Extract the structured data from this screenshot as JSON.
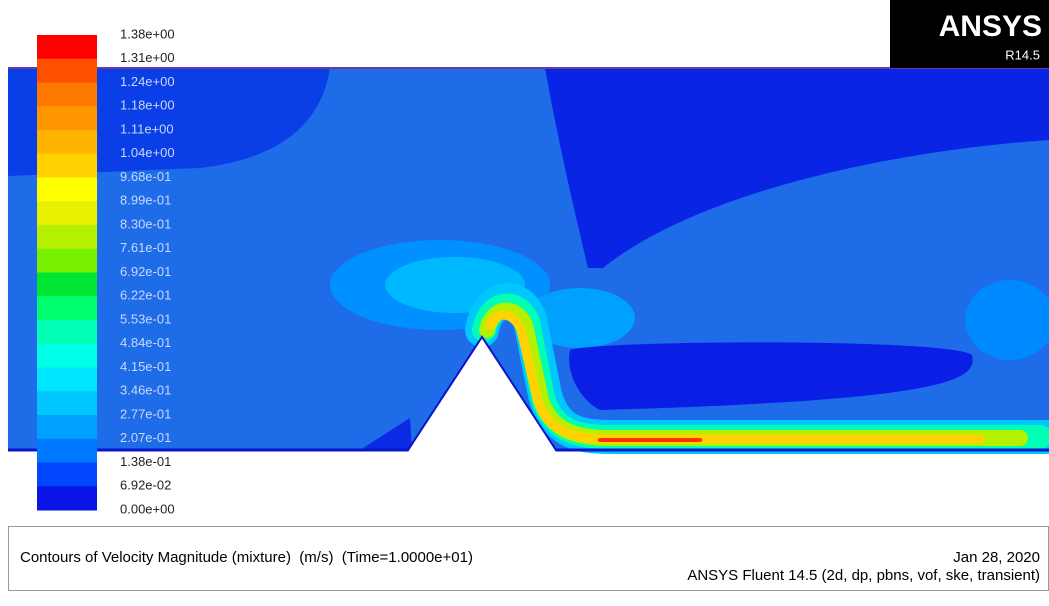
{
  "logo": {
    "brand": "ANSYS",
    "release": "R14.5"
  },
  "colorbar": {
    "labels": [
      "1.38e+00",
      "1.31e+00",
      "1.24e+00",
      "1.18e+00",
      "1.11e+00",
      "1.04e+00",
      "9.68e-01",
      "8.99e-01",
      "8.30e-01",
      "7.61e-01",
      "6.92e-01",
      "6.22e-01",
      "5.53e-01",
      "4.84e-01",
      "4.15e-01",
      "3.46e-01",
      "2.77e-01",
      "2.07e-01",
      "1.38e-01",
      "6.92e-02",
      "0.00e+00"
    ],
    "colors": [
      "#ff0000",
      "#ff5000",
      "#ff7800",
      "#ff9600",
      "#ffb400",
      "#ffd200",
      "#ffff00",
      "#e6f000",
      "#b4f000",
      "#78f000",
      "#00e632",
      "#00ff6e",
      "#00ffb4",
      "#00ffe6",
      "#00e6ff",
      "#00c8ff",
      "#00a0ff",
      "#0078ff",
      "#0046ff",
      "#0a14e6"
    ]
  },
  "footer": {
    "title": "Contours of Velocity Magnitude (mixture)  (m/s)  (Time=1.0000e+01)",
    "date": "Jan 28, 2020",
    "solver": "ANSYS Fluent 14.5 (2d, dp, pbns, vof, ske, transient)"
  }
}
